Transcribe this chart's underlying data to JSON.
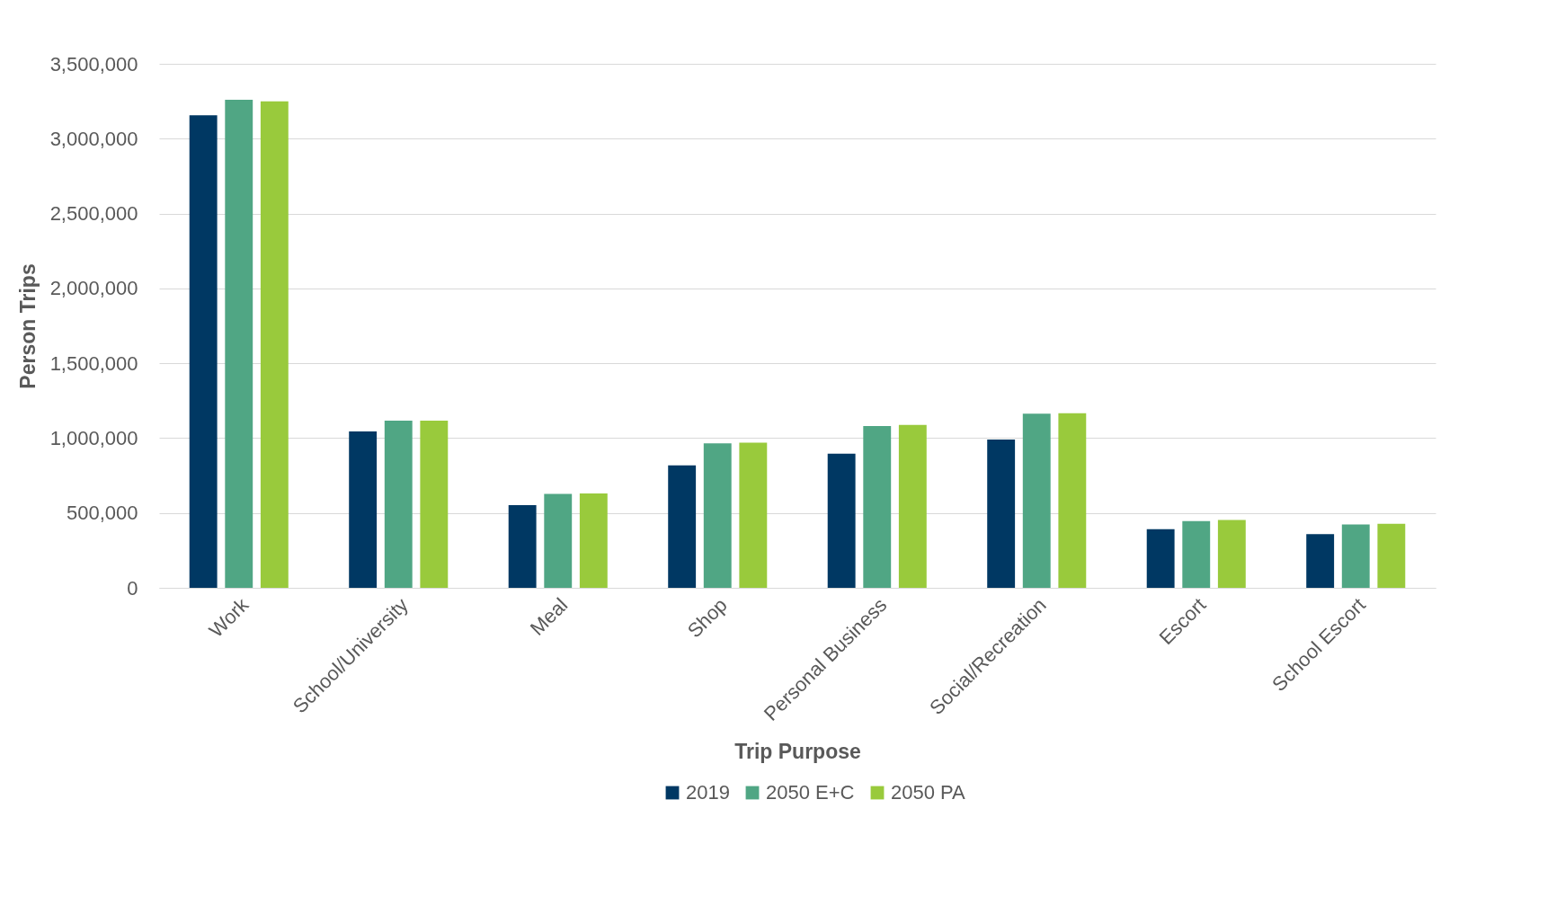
{
  "chart_data": {
    "type": "bar",
    "xlabel": "Trip Purpose",
    "ylabel": "Person Trips",
    "categories": [
      "Work",
      "School/University",
      "Meal",
      "Shop",
      "Personal Business",
      "Social/Recreation",
      "Escort",
      "School Escort"
    ],
    "series": [
      {
        "name": "2019",
        "color": "#003863",
        "values": [
          3156000,
          1045000,
          553000,
          818000,
          896000,
          990000,
          391000,
          358000
        ]
      },
      {
        "name": "2050 E+C",
        "color": "#50a684",
        "values": [
          3260000,
          1117000,
          628000,
          965000,
          1081000,
          1163000,
          446000,
          423000
        ]
      },
      {
        "name": "2050 PA",
        "color": "#99ca3c",
        "values": [
          3250000,
          1117000,
          631000,
          970000,
          1088000,
          1166000,
          453000,
          427000
        ]
      }
    ],
    "ylim": [
      0,
      3500000
    ],
    "yticks": [
      0,
      {
        "value": 500000,
        "label": "500,000"
      },
      {
        "value": 1000000,
        "label": "1,000,000"
      },
      {
        "value": 1500000,
        "label": "1,500,000"
      },
      {
        "value": 2000000,
        "label": "2,000,000"
      },
      {
        "value": 2500000,
        "label": "2,500,000"
      },
      {
        "value": 3000000,
        "label": "3,000,000"
      },
      {
        "value": 3500000,
        "label": "3,500,000"
      }
    ],
    "grid": "y",
    "legend": "bottom"
  }
}
